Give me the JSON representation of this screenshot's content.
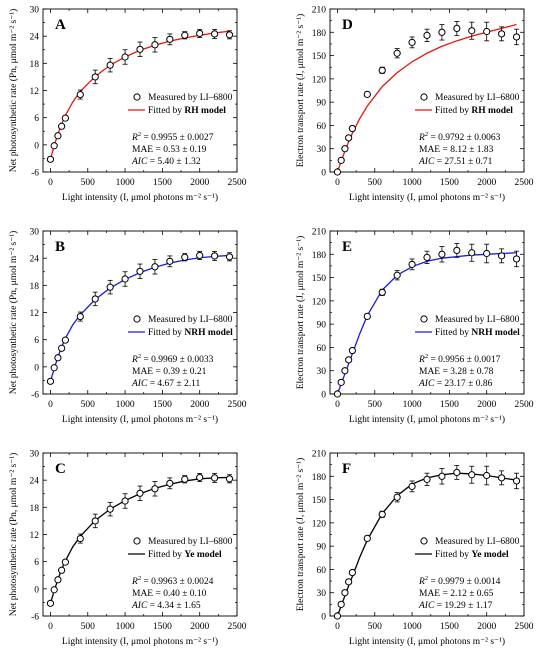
{
  "chart_data": [
    {
      "type": "scatter",
      "panel": "A",
      "xlabel": "Light intensity (I, μmol photons m⁻² s⁻¹)",
      "ylabel": "Net photosynthetic rate (Pn, μmol m⁻² s⁻¹)",
      "xlim": [
        -100,
        2500
      ],
      "ylim": [
        -6,
        30
      ],
      "xticks": [
        0,
        500,
        1000,
        1500,
        2000,
        2500
      ],
      "yticks": [
        -6,
        0,
        6,
        12,
        18,
        24,
        30
      ],
      "measured": {
        "x": [
          0,
          50,
          100,
          150,
          200,
          400,
          600,
          800,
          1000,
          1200,
          1400,
          1600,
          1800,
          2000,
          2200,
          2400
        ],
        "y": [
          -3.2,
          -0.2,
          2.0,
          4.1,
          5.9,
          11.1,
          15.0,
          17.6,
          19.4,
          21.1,
          22.1,
          23.3,
          24.2,
          24.6,
          24.5,
          24.3
        ],
        "err": [
          0.4,
          0.3,
          0.3,
          0.4,
          0.5,
          1.0,
          1.5,
          1.5,
          1.6,
          1.6,
          1.6,
          1.2,
          0.8,
          0.9,
          1.0,
          0.9
        ]
      },
      "fit": {
        "model": "RH",
        "color": "#e8160c",
        "x": [
          0,
          50,
          100,
          150,
          200,
          300,
          400,
          600,
          800,
          1000,
          1200,
          1400,
          1600,
          1800,
          2000,
          2200,
          2400
        ],
        "y": [
          -3.2,
          -0.2,
          2.4,
          4.6,
          6.5,
          9.5,
          11.8,
          15.1,
          17.6,
          19.4,
          20.9,
          22.0,
          22.9,
          23.6,
          24.2,
          24.7,
          25.1
        ]
      },
      "legend": {
        "measured": "Measured by LI–6800",
        "fit_prefix": "Fitted by ",
        "fit_model": "RH model"
      },
      "stats": {
        "r2": "= 0.9955 ± 0.0027",
        "mae": "MAE = 0.53 ± 0.19",
        "aic": "= 5.40 ± 1.32"
      }
    },
    {
      "type": "scatter",
      "panel": "D",
      "xlabel": "Light intensity (I, μmol photons m⁻² s⁻¹)",
      "ylabel": "Electron transport rate (J, μmol m⁻² s⁻¹)",
      "xlim": [
        -100,
        2500
      ],
      "ylim": [
        0,
        210
      ],
      "xticks": [
        0,
        500,
        1000,
        1500,
        2000,
        2500
      ],
      "yticks": [
        0,
        30,
        60,
        90,
        120,
        150,
        180,
        210
      ],
      "measured": {
        "x": [
          0,
          50,
          100,
          150,
          200,
          400,
          600,
          800,
          1000,
          1200,
          1400,
          1600,
          1800,
          2000,
          2200,
          2400
        ],
        "y": [
          0,
          15,
          30,
          44,
          56,
          100,
          131,
          153,
          167,
          176,
          180,
          185,
          182,
          181,
          178,
          174
        ],
        "err": [
          1,
          2,
          2,
          2,
          3,
          3,
          4,
          6,
          7,
          8,
          10,
          9,
          11,
          12,
          9,
          10
        ]
      },
      "fit": {
        "model": "RH",
        "color": "#e8160c",
        "x": [
          0,
          50,
          100,
          150,
          200,
          300,
          400,
          600,
          800,
          1000,
          1200,
          1400,
          1600,
          1800,
          2000,
          2200,
          2400
        ],
        "y": [
          0,
          14,
          27,
          39,
          50,
          69,
          85,
          110,
          128,
          142,
          153,
          162,
          169,
          175,
          180,
          185,
          190
        ]
      },
      "legend": {
        "measured": "Measured by LI–6800",
        "fit_prefix": "Fitted by ",
        "fit_model": "RH model"
      },
      "stats": {
        "r2": "= 0.9792 ± 0.0063",
        "mae": "MAE = 8.12 ± 1.83",
        "aic": "= 27.51 ± 0.71"
      }
    },
    {
      "type": "scatter",
      "panel": "B",
      "xlabel": "Light intensity (I, μmol photons m⁻² s⁻¹)",
      "ylabel": "Net photosynthetic rate (Pn, μmol m⁻² s⁻¹)",
      "xlim": [
        -100,
        2500
      ],
      "ylim": [
        -6,
        30
      ],
      "xticks": [
        0,
        500,
        1000,
        1500,
        2000,
        2500
      ],
      "yticks": [
        -6,
        0,
        6,
        12,
        18,
        24,
        30
      ],
      "measured": {
        "x": [
          0,
          50,
          100,
          150,
          200,
          400,
          600,
          800,
          1000,
          1200,
          1400,
          1600,
          1800,
          2000,
          2200,
          2400
        ],
        "y": [
          -3.2,
          -0.2,
          2.0,
          4.1,
          5.9,
          11.1,
          15.0,
          17.6,
          19.4,
          21.1,
          22.1,
          23.3,
          24.2,
          24.6,
          24.5,
          24.3
        ],
        "err": [
          0.4,
          0.3,
          0.3,
          0.4,
          0.5,
          1.0,
          1.5,
          1.5,
          1.6,
          1.6,
          1.6,
          1.2,
          0.8,
          0.9,
          1.0,
          0.9
        ]
      },
      "fit": {
        "model": "NRH",
        "color": "#1a1ae6",
        "x": [
          0,
          50,
          100,
          150,
          200,
          300,
          400,
          600,
          800,
          1000,
          1200,
          1400,
          1600,
          1800,
          2000,
          2200,
          2400
        ],
        "y": [
          -3.2,
          -0.4,
          2.2,
          4.4,
          6.3,
          9.3,
          11.5,
          14.9,
          17.4,
          19.3,
          20.8,
          22.0,
          22.9,
          23.6,
          24.1,
          24.4,
          24.6
        ]
      },
      "legend": {
        "measured": "Measured by LI–6800",
        "fit_prefix": "Fitted by ",
        "fit_model": "NRH model"
      },
      "stats": {
        "r2": "= 0.9969 ± 0.0033",
        "mae": "MAE = 0.39 ± 0.21",
        "aic": "= 4.67 ± 2.11"
      }
    },
    {
      "type": "scatter",
      "panel": "E",
      "xlabel": "Light intensity (I, μmol photons m⁻² s⁻¹)",
      "ylabel": "Electron transport rate (J, μmol m⁻² s⁻¹)",
      "xlim": [
        -100,
        2500
      ],
      "ylim": [
        0,
        210
      ],
      "xticks": [
        0,
        500,
        1000,
        1500,
        2000,
        2500
      ],
      "yticks": [
        0,
        30,
        60,
        90,
        120,
        150,
        180,
        210
      ],
      "measured": {
        "x": [
          0,
          50,
          100,
          150,
          200,
          400,
          600,
          800,
          1000,
          1200,
          1400,
          1600,
          1800,
          2000,
          2200,
          2400
        ],
        "y": [
          0,
          15,
          30,
          44,
          56,
          100,
          131,
          153,
          167,
          176,
          180,
          185,
          182,
          181,
          178,
          174
        ],
        "err": [
          1,
          2,
          2,
          2,
          3,
          3,
          4,
          6,
          7,
          8,
          10,
          9,
          11,
          12,
          9,
          10
        ]
      },
      "fit": {
        "model": "NRH",
        "color": "#1a1ae6",
        "x": [
          0,
          50,
          100,
          150,
          200,
          300,
          400,
          600,
          800,
          1000,
          1200,
          1400,
          1600,
          1800,
          2000,
          2200,
          2400
        ],
        "y": [
          0,
          13,
          26,
          39,
          52,
          78,
          101,
          134,
          153,
          164,
          171,
          175,
          177,
          179,
          180,
          181,
          182
        ]
      },
      "legend": {
        "measured": "Measured by LI–6800",
        "fit_prefix": "Fitted by ",
        "fit_model": "NRH model"
      },
      "stats": {
        "r2": "= 0.9956 ± 0.0017",
        "mae": "MAE = 3.28 ± 0.78",
        "aic": "= 23.17 ± 0.86"
      }
    },
    {
      "type": "scatter",
      "panel": "C",
      "xlabel": "Light intensity (I, μmol photons m⁻² s⁻¹)",
      "ylabel": "Net photosynthetic rate (Pn, μmol m⁻² s⁻¹)",
      "xlim": [
        -100,
        2500
      ],
      "ylim": [
        -6,
        30
      ],
      "xticks": [
        0,
        500,
        1000,
        1500,
        2000,
        2500
      ],
      "yticks": [
        -6,
        0,
        6,
        12,
        18,
        24,
        30
      ],
      "measured": {
        "x": [
          0,
          50,
          100,
          150,
          200,
          400,
          600,
          800,
          1000,
          1200,
          1400,
          1600,
          1800,
          2000,
          2200,
          2400
        ],
        "y": [
          -3.2,
          -0.2,
          2.0,
          4.1,
          5.9,
          11.1,
          15.0,
          17.6,
          19.4,
          21.1,
          22.1,
          23.3,
          24.2,
          24.6,
          24.5,
          24.3
        ],
        "err": [
          0.4,
          0.3,
          0.3,
          0.4,
          0.5,
          1.0,
          1.5,
          1.5,
          1.6,
          1.6,
          1.6,
          1.2,
          0.8,
          0.9,
          1.0,
          0.9
        ]
      },
      "fit": {
        "model": "Ye",
        "color": "#000000",
        "x": [
          0,
          50,
          100,
          150,
          200,
          300,
          400,
          600,
          800,
          1000,
          1200,
          1400,
          1600,
          1800,
          2000,
          2200,
          2400
        ],
        "y": [
          -3.2,
          -0.4,
          2.1,
          4.3,
          6.2,
          9.3,
          11.6,
          15.1,
          17.6,
          19.5,
          21.0,
          22.2,
          23.1,
          23.8,
          24.3,
          24.5,
          24.6
        ]
      },
      "legend": {
        "measured": "Measured by LI–6800",
        "fit_prefix": "Fitted by ",
        "fit_model": "Ye model"
      },
      "stats": {
        "r2": "= 0.9963 ± 0.0024",
        "mae": "MAE = 0.40 ± 0.10",
        "aic": "= 4.34 ± 1.65"
      }
    },
    {
      "type": "scatter",
      "panel": "F",
      "xlabel": "Light intensity (I, μmol photons m⁻² s⁻¹)",
      "ylabel": "Electron transport rate (J, μmol m⁻² s⁻¹)",
      "xlim": [
        -100,
        2500
      ],
      "ylim": [
        0,
        210
      ],
      "xticks": [
        0,
        500,
        1000,
        1500,
        2000,
        2500
      ],
      "yticks": [
        0,
        30,
        60,
        90,
        120,
        150,
        180,
        210
      ],
      "measured": {
        "x": [
          0,
          50,
          100,
          150,
          200,
          400,
          600,
          800,
          1000,
          1200,
          1400,
          1600,
          1800,
          2000,
          2200,
          2400
        ],
        "y": [
          0,
          15,
          30,
          44,
          56,
          100,
          131,
          153,
          167,
          176,
          180,
          185,
          182,
          181,
          178,
          174
        ],
        "err": [
          1,
          2,
          2,
          2,
          3,
          3,
          4,
          6,
          7,
          8,
          10,
          9,
          11,
          12,
          9,
          10
        ]
      },
      "fit": {
        "model": "Ye",
        "color": "#000000",
        "x": [
          0,
          50,
          100,
          150,
          200,
          300,
          400,
          600,
          800,
          1000,
          1200,
          1400,
          1600,
          1800,
          2000,
          2200,
          2400
        ],
        "y": [
          0,
          13,
          26,
          39,
          51,
          76,
          98,
          132,
          155,
          170,
          178,
          182,
          184,
          183,
          181,
          178,
          175
        ]
      },
      "legend": {
        "measured": "Measured by LI–6800",
        "fit_prefix": "Fitted by ",
        "fit_model": "Ye model"
      },
      "stats": {
        "r2": "= 0.9979 ± 0.0014",
        "mae": "MAE = 2.12 ± 0.65",
        "aic": "= 19.29 ± 1.17"
      }
    }
  ]
}
